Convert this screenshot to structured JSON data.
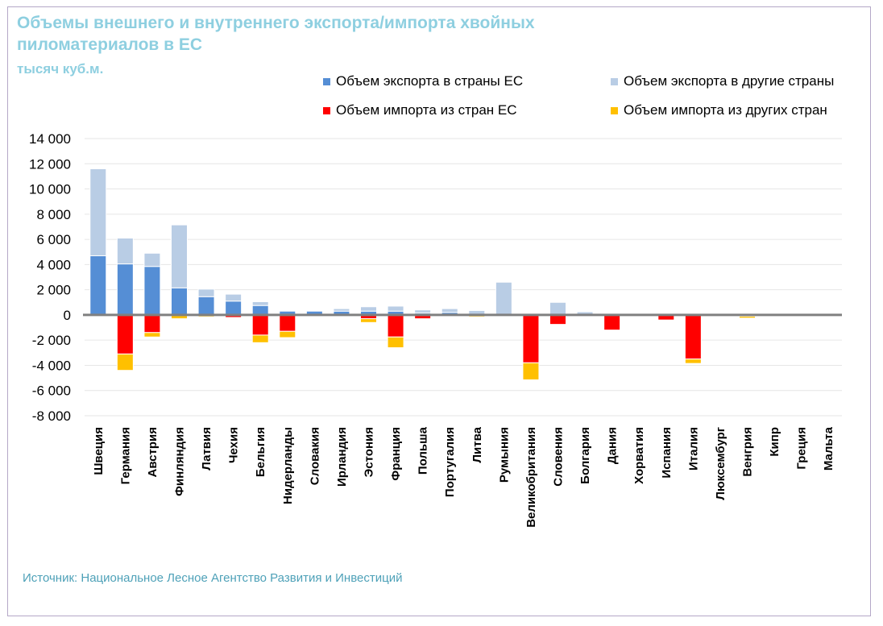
{
  "chart_data": {
    "type": "bar",
    "stacked": true,
    "title": "Объемы внешнего и внутреннего экспорта/импорта хвойных пиломатериалов в ЕС",
    "subtitle": "тысяч куб.м.",
    "xlabel": "",
    "ylabel": "",
    "ylim": [
      -8000,
      14000
    ],
    "yticks": [
      14000,
      12000,
      10000,
      8000,
      6000,
      4000,
      2000,
      0,
      -2000,
      -4000,
      -6000,
      -8000
    ],
    "ytick_labels": [
      "14 000",
      "12 000",
      "10 000",
      "8 000",
      "6 000",
      "4 000",
      "2 000",
      "0",
      "-2 000",
      "-4 000",
      "-6 000",
      "-8 000"
    ],
    "grid": true,
    "legend_position": "top-right",
    "categories": [
      "Швеция",
      "Германия",
      "Австрия",
      "Финляндия",
      "Латвия",
      "Чехия",
      "Бельгия",
      "Нидерланды",
      "Словакия",
      "Ирландия",
      "Эстония",
      "Франция",
      "Польша",
      "Португалия",
      "Литва",
      "Румыния",
      "Великобритания",
      "Словения",
      "Болгария",
      "Дания",
      "Хорватия",
      "Испания",
      "Италия",
      "Люксембург",
      "Венгрия",
      "Кипр",
      "Греция",
      "Мальта"
    ],
    "series": [
      {
        "name": "Объем экспорта в страны ЕС",
        "color": "#558ed5",
        "stack": "positive",
        "values": [
          4700,
          4050,
          3850,
          2150,
          1450,
          1100,
          750,
          300,
          300,
          300,
          300,
          300,
          150,
          200,
          50,
          0,
          0,
          0,
          0,
          0,
          0,
          0,
          0,
          0,
          0,
          0,
          0,
          0
        ]
      },
      {
        "name": "Объем экспорта в другие страны",
        "color": "#b9cde5",
        "stack": "positive",
        "values": [
          6900,
          2050,
          1050,
          5000,
          600,
          550,
          300,
          0,
          0,
          200,
          350,
          400,
          250,
          300,
          300,
          2600,
          0,
          1000,
          250,
          0,
          0,
          0,
          0,
          0,
          0,
          0,
          0,
          0
        ]
      },
      {
        "name": "Объем импорта из стран ЕС",
        "color": "#ff0000",
        "stack": "negative",
        "values": [
          0,
          -3100,
          -1400,
          0,
          0,
          -200,
          -1600,
          -1300,
          0,
          0,
          -300,
          -1750,
          -300,
          0,
          0,
          0,
          -3800,
          -750,
          0,
          -1200,
          0,
          -400,
          -3500,
          0,
          -100,
          0,
          0,
          0
        ]
      },
      {
        "name": "Объем импорта из других стран",
        "color": "#ffc000",
        "stack": "negative",
        "values": [
          0,
          -1300,
          -350,
          -300,
          -150,
          0,
          -600,
          -500,
          0,
          0,
          -300,
          -850,
          0,
          0,
          -150,
          0,
          -1350,
          0,
          0,
          0,
          0,
          0,
          -350,
          0,
          -150,
          0,
          0,
          0
        ]
      }
    ]
  },
  "legend": {
    "items": [
      {
        "label": "Объем экспорта в страны ЕС",
        "color": "#558ed5"
      },
      {
        "label": "Объем экспорта в другие страны",
        "color": "#b9cde5"
      },
      {
        "label": "Объем импорта из стран ЕС",
        "color": "#ff0000"
      },
      {
        "label": "Объем импорта из других стран",
        "color": "#ffc000"
      }
    ]
  },
  "header": {
    "title": "Объемы внешнего и внутреннего экспорта/импорта хвойных пиломатериалов в ЕС",
    "unit": "тысяч куб.м."
  },
  "footer": {
    "source": "Источник: Национальное Лесное Агентство Развития и Инвестиций"
  }
}
